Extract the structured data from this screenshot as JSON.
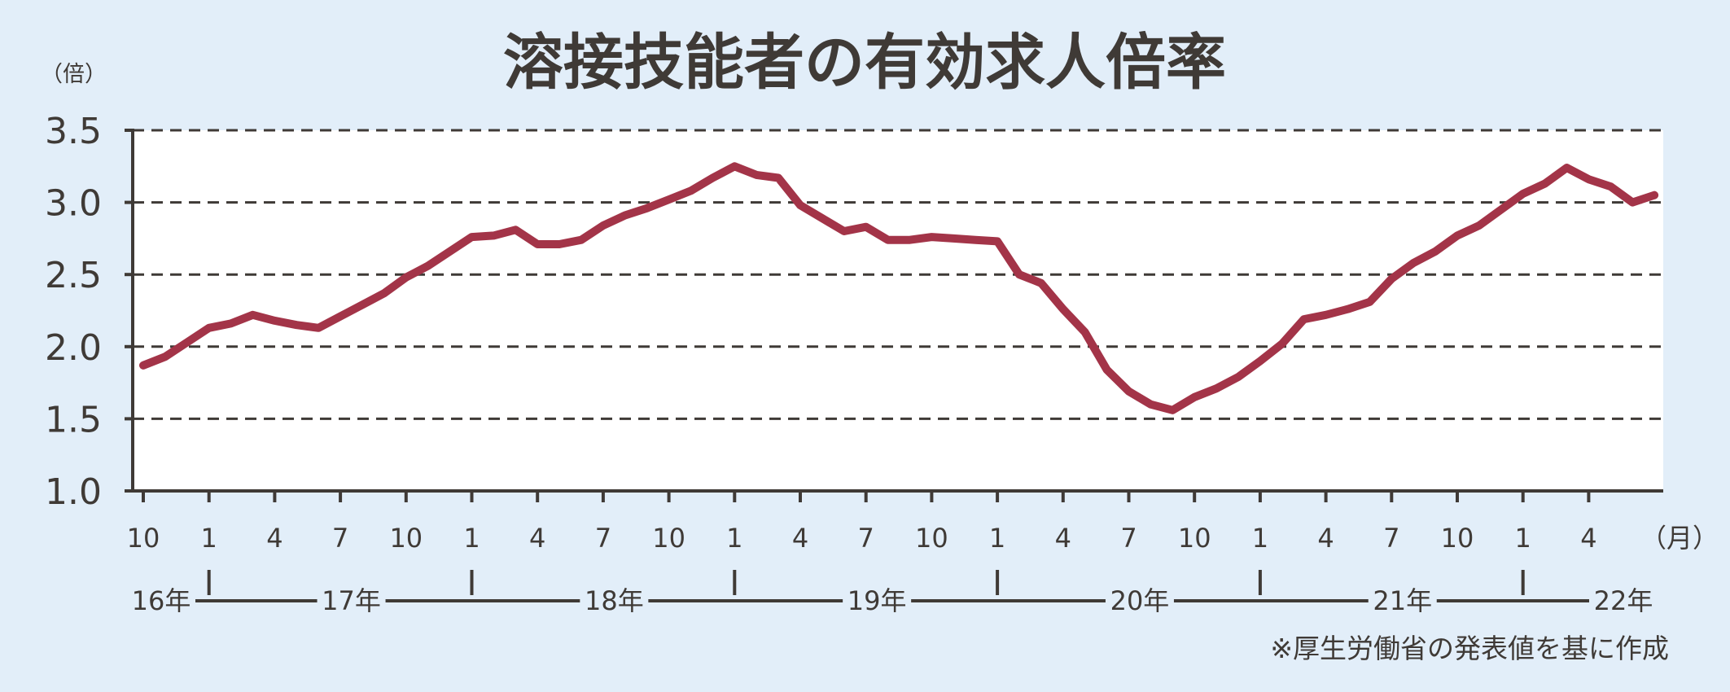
{
  "chart_data": {
    "type": "line",
    "title": "溶接技能者の有効求人倍率",
    "y_unit": "（倍）",
    "x_unit": "（月）",
    "source_note": "※厚生労働省の発表値を基に作成",
    "ylim": [
      1.0,
      3.5
    ],
    "y_ticks": [
      "1.0",
      "1.5",
      "2.0",
      "2.5",
      "3.0",
      "3.5"
    ],
    "grid": "horizontal dashed",
    "line_color": "#a33448",
    "x_tick_labels": [
      "10",
      "1",
      "4",
      "7",
      "10",
      "1",
      "4",
      "7",
      "10",
      "1",
      "4",
      "7",
      "10",
      "1",
      "4",
      "7",
      "10",
      "1",
      "4",
      "7",
      "10",
      "1",
      "4"
    ],
    "year_labels": [
      "16年",
      "17年",
      "18年",
      "19年",
      "20年",
      "21年",
      "22年"
    ],
    "series": [
      {
        "values": [
          {
            "x": "2016-10",
            "y": 1.87
          },
          {
            "x": "2016-11",
            "y": 1.93
          },
          {
            "x": "2016-12",
            "y": 2.03
          },
          {
            "x": "2017-01",
            "y": 2.13
          },
          {
            "x": "2017-02",
            "y": 2.16
          },
          {
            "x": "2017-03",
            "y": 2.22
          },
          {
            "x": "2017-04",
            "y": 2.18
          },
          {
            "x": "2017-05",
            "y": 2.15
          },
          {
            "x": "2017-06",
            "y": 2.13
          },
          {
            "x": "2017-07",
            "y": 2.21
          },
          {
            "x": "2017-08",
            "y": 2.29
          },
          {
            "x": "2017-09",
            "y": 2.37
          },
          {
            "x": "2017-10",
            "y": 2.48
          },
          {
            "x": "2017-11",
            "y": 2.56
          },
          {
            "x": "2017-12",
            "y": 2.66
          },
          {
            "x": "2018-01",
            "y": 2.76
          },
          {
            "x": "2018-02",
            "y": 2.77
          },
          {
            "x": "2018-03",
            "y": 2.81
          },
          {
            "x": "2018-04",
            "y": 2.71
          },
          {
            "x": "2018-05",
            "y": 2.71
          },
          {
            "x": "2018-06",
            "y": 2.74
          },
          {
            "x": "2018-07",
            "y": 2.84
          },
          {
            "x": "2018-08",
            "y": 2.91
          },
          {
            "x": "2018-09",
            "y": 2.96
          },
          {
            "x": "2018-10",
            "y": 3.02
          },
          {
            "x": "2018-11",
            "y": 3.08
          },
          {
            "x": "2018-12",
            "y": 3.17
          },
          {
            "x": "2019-01",
            "y": 3.25
          },
          {
            "x": "2019-02",
            "y": 3.19
          },
          {
            "x": "2019-03",
            "y": 3.17
          },
          {
            "x": "2019-04",
            "y": 2.98
          },
          {
            "x": "2019-05",
            "y": 2.89
          },
          {
            "x": "2019-06",
            "y": 2.8
          },
          {
            "x": "2019-07",
            "y": 2.83
          },
          {
            "x": "2019-08",
            "y": 2.74
          },
          {
            "x": "2019-09",
            "y": 2.74
          },
          {
            "x": "2019-10",
            "y": 2.76
          },
          {
            "x": "2019-11",
            "y": 2.75
          },
          {
            "x": "2019-12",
            "y": 2.74
          },
          {
            "x": "2020-01",
            "y": 2.73
          },
          {
            "x": "2020-02",
            "y": 2.5
          },
          {
            "x": "2020-03",
            "y": 2.44
          },
          {
            "x": "2020-04",
            "y": 2.26
          },
          {
            "x": "2020-05",
            "y": 2.1
          },
          {
            "x": "2020-06",
            "y": 1.84
          },
          {
            "x": "2020-07",
            "y": 1.69
          },
          {
            "x": "2020-08",
            "y": 1.6
          },
          {
            "x": "2020-09",
            "y": 1.56
          },
          {
            "x": "2020-10",
            "y": 1.65
          },
          {
            "x": "2020-11",
            "y": 1.71
          },
          {
            "x": "2020-12",
            "y": 1.79
          },
          {
            "x": "2021-01",
            "y": 1.9
          },
          {
            "x": "2021-02",
            "y": 2.02
          },
          {
            "x": "2021-03",
            "y": 2.19
          },
          {
            "x": "2021-04",
            "y": 2.22
          },
          {
            "x": "2021-05",
            "y": 2.26
          },
          {
            "x": "2021-06",
            "y": 2.31
          },
          {
            "x": "2021-07",
            "y": 2.47
          },
          {
            "x": "2021-08",
            "y": 2.58
          },
          {
            "x": "2021-09",
            "y": 2.66
          },
          {
            "x": "2021-10",
            "y": 2.77
          },
          {
            "x": "2021-11",
            "y": 2.84
          },
          {
            "x": "2021-12",
            "y": 2.95
          },
          {
            "x": "2022-01",
            "y": 3.06
          },
          {
            "x": "2022-02",
            "y": 3.13
          },
          {
            "x": "2022-03",
            "y": 3.24
          },
          {
            "x": "2022-04",
            "y": 3.16
          },
          {
            "x": "2022-05",
            "y": 3.11
          },
          {
            "x": "2022-06",
            "y": 3.0
          },
          {
            "x": "2022-07",
            "y": 3.05
          }
        ]
      }
    ]
  }
}
